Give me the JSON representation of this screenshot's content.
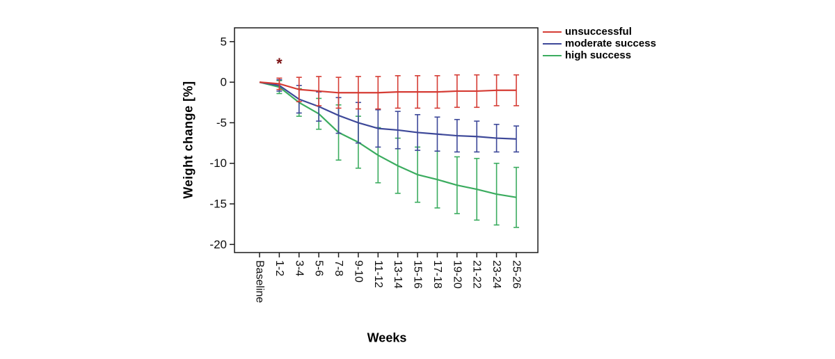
{
  "figure": {
    "x_axis_title": "Weeks",
    "y_axis_title": "Weight change [%]"
  },
  "chart_data": {
    "type": "line",
    "title": "",
    "xlabel": "Weeks",
    "ylabel": "Weight change [%]",
    "grid": false,
    "error_bars": true,
    "legend_position": "outside-top-right",
    "ylim": [
      -21,
      6.7
    ],
    "yticks": [
      5,
      0,
      -5,
      -10,
      -15,
      -20
    ],
    "categories": [
      "Baseline",
      "1-2",
      "3-4",
      "5-6",
      "7-8",
      "9-10",
      "11-12",
      "13-14",
      "15-16",
      "17-18",
      "19-20",
      "21-22",
      "23-24",
      "25-26"
    ],
    "annotation": {
      "symbol": "*",
      "category": "1-2",
      "value": 2.2,
      "color": "#7c1214",
      "meaning": "significance-marker"
    },
    "series": [
      {
        "id": "unsuccessful",
        "name": "unsuccessful",
        "color": "#d53c34",
        "values": [
          0,
          -0.2,
          -0.9,
          -1.1,
          -1.3,
          -1.3,
          -1.3,
          -1.2,
          -1.2,
          -1.2,
          -1.1,
          -1.1,
          -1.0,
          -1.0
        ],
        "err": [
          0,
          0.7,
          1.5,
          1.8,
          1.9,
          2.0,
          2.0,
          2.0,
          2.0,
          2.0,
          2.0,
          2.0,
          1.9,
          1.9
        ]
      },
      {
        "id": "moderate-success",
        "name": "moderate success",
        "color": "#3d4899",
        "values": [
          0,
          -0.4,
          -2.1,
          -3.0,
          -4.1,
          -5.0,
          -5.7,
          -5.9,
          -6.2,
          -6.4,
          -6.6,
          -6.7,
          -6.9,
          -7.0
        ],
        "err": [
          0,
          0.7,
          1.7,
          1.8,
          2.2,
          2.5,
          2.3,
          2.3,
          2.2,
          2.1,
          2.0,
          1.9,
          1.7,
          1.6
        ]
      },
      {
        "id": "high-success",
        "name": "high success",
        "color": "#3bac5f",
        "values": [
          0,
          -0.6,
          -2.5,
          -3.9,
          -6.2,
          -7.4,
          -9.0,
          -10.3,
          -11.4,
          -12.0,
          -12.7,
          -13.2,
          -13.8,
          -14.2
        ],
        "err": [
          0,
          0.8,
          1.7,
          1.9,
          3.4,
          3.2,
          3.4,
          3.4,
          3.4,
          3.5,
          3.5,
          3.8,
          3.8,
          3.7
        ]
      }
    ]
  }
}
